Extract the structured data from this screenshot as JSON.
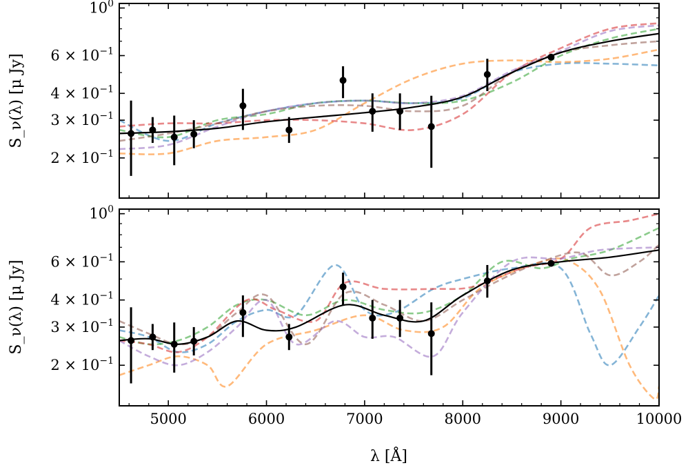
{
  "chart_data": {
    "type": "line",
    "panels": [
      {
        "id": "top",
        "ylabel": "S_ν(λ) [μ Jy]",
        "yscale": "log",
        "ylim": [
          0.13,
          1.05
        ],
        "y_ticks": [
          {
            "value": 0.2,
            "mantissa": "2",
            "exp": "−1"
          },
          {
            "value": 0.3,
            "mantissa": "3",
            "exp": "−1"
          },
          {
            "value": 0.4,
            "mantissa": "4",
            "exp": "−1"
          },
          {
            "value": 0.6,
            "mantissa": "6",
            "exp": "−1"
          },
          {
            "value": 1.0,
            "mantissa": "",
            "exp": "0"
          }
        ],
        "observations": [
          {
            "x": 4620,
            "y": 0.26,
            "ylow": 0.165,
            "yhigh": 0.37
          },
          {
            "x": 4840,
            "y": 0.27,
            "ylow": 0.235,
            "yhigh": 0.31
          },
          {
            "x": 5060,
            "y": 0.25,
            "ylow": 0.185,
            "yhigh": 0.315
          },
          {
            "x": 5260,
            "y": 0.258,
            "ylow": 0.222,
            "yhigh": 0.3
          },
          {
            "x": 5760,
            "y": 0.35,
            "ylow": 0.27,
            "yhigh": 0.42
          },
          {
            "x": 6230,
            "y": 0.27,
            "ylow": 0.235,
            "yhigh": 0.31
          },
          {
            "x": 6780,
            "y": 0.46,
            "ylow": 0.38,
            "yhigh": 0.535
          },
          {
            "x": 7080,
            "y": 0.33,
            "ylow": 0.265,
            "yhigh": 0.4
          },
          {
            "x": 7360,
            "y": 0.33,
            "ylow": 0.27,
            "yhigh": 0.4
          },
          {
            "x": 7680,
            "y": 0.28,
            "ylow": 0.18,
            "yhigh": 0.39
          },
          {
            "x": 8250,
            "y": 0.49,
            "ylow": 0.41,
            "yhigh": 0.58
          },
          {
            "x": 8900,
            "y": 0.59,
            "ylow": 0.575,
            "yhigh": 0.605
          }
        ],
        "fit": {
          "x": [
            4500,
            5000,
            5500,
            6000,
            6500,
            7000,
            7500,
            8000,
            8500,
            9000,
            9500,
            10000
          ],
          "y": [
            0.26,
            0.265,
            0.275,
            0.295,
            0.31,
            0.325,
            0.345,
            0.385,
            0.5,
            0.62,
            0.7,
            0.76
          ]
        },
        "samples": [
          {
            "color": "#1f77b4",
            "x": [
              4500,
              5000,
              5500,
              6000,
              6500,
              7000,
              7500,
              8000,
              8500,
              9000,
              9500,
              10000
            ],
            "y": [
              0.3,
              0.24,
              0.29,
              0.33,
              0.36,
              0.37,
              0.36,
              0.38,
              0.5,
              0.55,
              0.55,
              0.54
            ]
          },
          {
            "color": "#ff7f0e",
            "x": [
              4500,
              5000,
              5500,
              6000,
              6500,
              7000,
              7500,
              8000,
              8500,
              9000,
              9500,
              10000
            ],
            "y": [
              0.21,
              0.21,
              0.24,
              0.25,
              0.27,
              0.36,
              0.47,
              0.55,
              0.57,
              0.56,
              0.58,
              0.64
            ]
          },
          {
            "color": "#2ca02c",
            "x": [
              4500,
              5000,
              5500,
              6000,
              6500,
              7000,
              7500,
              8000,
              8500,
              9000,
              9500,
              10000
            ],
            "y": [
              0.27,
              0.25,
              0.3,
              0.32,
              0.36,
              0.37,
              0.36,
              0.37,
              0.45,
              0.6,
              0.72,
              0.8
            ]
          },
          {
            "color": "#d62728",
            "x": [
              4500,
              5000,
              5500,
              6000,
              6500,
              7000,
              7500,
              8000,
              8500,
              9000,
              9500,
              10000
            ],
            "y": [
              0.28,
              0.29,
              0.29,
              0.3,
              0.3,
              0.29,
              0.27,
              0.32,
              0.5,
              0.65,
              0.8,
              0.85
            ]
          },
          {
            "color": "#9467bd",
            "x": [
              4500,
              5000,
              5500,
              6000,
              6500,
              7000,
              7500,
              8000,
              8500,
              9000,
              9500,
              10000
            ],
            "y": [
              0.22,
              0.23,
              0.28,
              0.33,
              0.36,
              0.37,
              0.36,
              0.39,
              0.51,
              0.63,
              0.78,
              0.83
            ]
          },
          {
            "color": "#8c564b",
            "x": [
              4500,
              5000,
              5500,
              6000,
              6500,
              7000,
              7500,
              8000,
              8500,
              9000,
              9500,
              10000
            ],
            "y": [
              0.24,
              0.26,
              0.29,
              0.33,
              0.35,
              0.35,
              0.33,
              0.35,
              0.5,
              0.62,
              0.67,
              0.7
            ]
          }
        ]
      },
      {
        "id": "bottom",
        "ylabel": "S_ν(λ) [μ Jy]",
        "yscale": "log",
        "ylim": [
          0.13,
          1.05
        ],
        "y_ticks": [
          {
            "value": 0.2,
            "mantissa": "2",
            "exp": "−1"
          },
          {
            "value": 0.3,
            "mantissa": "3",
            "exp": "−1"
          },
          {
            "value": 0.4,
            "mantissa": "4",
            "exp": "−1"
          },
          {
            "value": 0.6,
            "mantissa": "6",
            "exp": "−1"
          },
          {
            "value": 1.0,
            "mantissa": "",
            "exp": "0"
          }
        ],
        "observations": [
          {
            "x": 4620,
            "y": 0.26,
            "ylow": 0.165,
            "yhigh": 0.37
          },
          {
            "x": 4840,
            "y": 0.27,
            "ylow": 0.235,
            "yhigh": 0.31
          },
          {
            "x": 5060,
            "y": 0.25,
            "ylow": 0.185,
            "yhigh": 0.315
          },
          {
            "x": 5260,
            "y": 0.258,
            "ylow": 0.222,
            "yhigh": 0.3
          },
          {
            "x": 5760,
            "y": 0.35,
            "ylow": 0.27,
            "yhigh": 0.42
          },
          {
            "x": 6230,
            "y": 0.27,
            "ylow": 0.235,
            "yhigh": 0.31
          },
          {
            "x": 6780,
            "y": 0.46,
            "ylow": 0.38,
            "yhigh": 0.535
          },
          {
            "x": 7080,
            "y": 0.33,
            "ylow": 0.265,
            "yhigh": 0.4
          },
          {
            "x": 7360,
            "y": 0.33,
            "ylow": 0.27,
            "yhigh": 0.4
          },
          {
            "x": 7680,
            "y": 0.28,
            "ylow": 0.18,
            "yhigh": 0.39
          },
          {
            "x": 8250,
            "y": 0.49,
            "ylow": 0.41,
            "yhigh": 0.58
          },
          {
            "x": 8900,
            "y": 0.59,
            "ylow": 0.575,
            "yhigh": 0.605
          }
        ],
        "fit": {
          "x": [
            4500,
            4800,
            5100,
            5400,
            5700,
            6000,
            6300,
            6800,
            7200,
            7600,
            8000,
            8500,
            9000,
            9500,
            10000
          ],
          "y": [
            0.26,
            0.265,
            0.25,
            0.27,
            0.32,
            0.29,
            0.3,
            0.38,
            0.34,
            0.32,
            0.42,
            0.55,
            0.6,
            0.63,
            0.68
          ]
        },
        "samples": [
          {
            "color": "#1f77b4",
            "x": [
              4500,
              4800,
              5100,
              5400,
              5700,
              6000,
              6300,
              6700,
              7000,
              7300,
              7700,
              8000,
              8500,
              9000,
              9300,
              9500,
              9800,
              10000
            ],
            "y": [
              0.29,
              0.27,
              0.23,
              0.25,
              0.32,
              0.36,
              0.34,
              0.58,
              0.36,
              0.35,
              0.45,
              0.5,
              0.56,
              0.56,
              0.28,
              0.2,
              0.3,
              0.42
            ]
          },
          {
            "color": "#ff7f0e",
            "x": [
              4500,
              4800,
              5100,
              5400,
              5600,
              6000,
              6500,
              7000,
              7400,
              7800,
              8200,
              8800,
              9100,
              9400,
              9700,
              9950,
              10000
            ],
            "y": [
              0.18,
              0.2,
              0.22,
              0.2,
              0.16,
              0.25,
              0.29,
              0.34,
              0.29,
              0.3,
              0.46,
              0.6,
              0.6,
              0.44,
              0.2,
              0.14,
              0.16
            ]
          },
          {
            "color": "#2ca02c",
            "x": [
              4500,
              4800,
              5100,
              5400,
              5700,
              6000,
              6400,
              6800,
              7200,
              7600,
              8000,
              8400,
              8800,
              9100,
              9500,
              10000
            ],
            "y": [
              0.27,
              0.25,
              0.26,
              0.3,
              0.38,
              0.4,
              0.34,
              0.4,
              0.36,
              0.35,
              0.42,
              0.6,
              0.56,
              0.62,
              0.68,
              0.86
            ]
          },
          {
            "color": "#d62728",
            "x": [
              4500,
              4800,
              5100,
              5400,
              5800,
              6100,
              6500,
              6800,
              7200,
              7700,
              8100,
              8600,
              9000,
              9300,
              9700,
              10000
            ],
            "y": [
              0.26,
              0.25,
              0.23,
              0.27,
              0.4,
              0.36,
              0.32,
              0.48,
              0.45,
              0.45,
              0.46,
              0.56,
              0.62,
              0.86,
              0.93,
              1.0
            ]
          },
          {
            "color": "#9467bd",
            "x": [
              4500,
              4800,
              5100,
              5400,
              5700,
              6000,
              6300,
              6700,
              7000,
              7300,
              7700,
              8000,
              8500,
              9000,
              9400,
              10000
            ],
            "y": [
              0.26,
              0.22,
              0.2,
              0.23,
              0.3,
              0.4,
              0.25,
              0.32,
              0.27,
              0.27,
              0.22,
              0.35,
              0.6,
              0.62,
              0.68,
              0.7
            ]
          },
          {
            "color": "#8c564b",
            "x": [
              4500,
              4800,
              5100,
              5400,
              5700,
              6000,
              6400,
              6800,
              7200,
              7600,
              8000,
              8400,
              8800,
              9200,
              9500,
              9800,
              10000
            ],
            "y": [
              0.32,
              0.28,
              0.25,
              0.27,
              0.35,
              0.42,
              0.25,
              0.43,
              0.38,
              0.32,
              0.4,
              0.5,
              0.6,
              0.66,
              0.52,
              0.6,
              0.72
            ]
          }
        ]
      }
    ],
    "xlabel": "λ [Å]",
    "xlim": [
      4500,
      10000
    ],
    "x_ticks": [
      5000,
      6000,
      7000,
      8000,
      9000,
      10000
    ],
    "legend": "none"
  }
}
